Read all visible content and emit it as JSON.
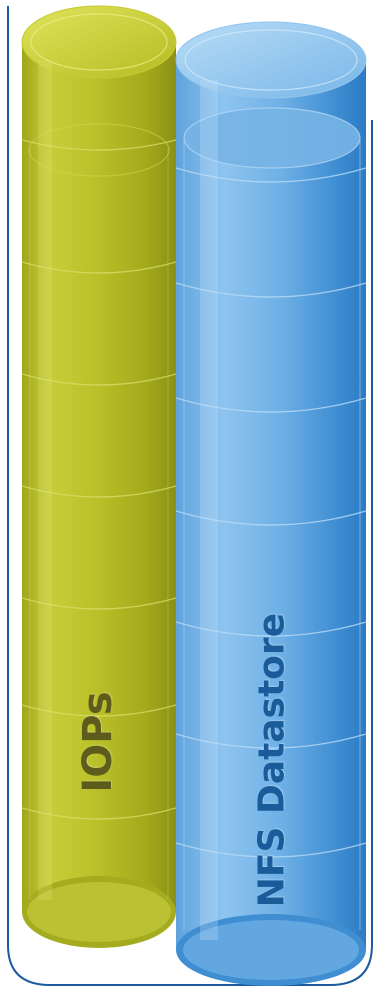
{
  "cylinders": [
    {
      "id": "iops",
      "label": "IOPs",
      "color": "#b8c124"
    },
    {
      "id": "nfs",
      "label": "NFS Datastore",
      "color": "#5aa8e4"
    }
  ]
}
